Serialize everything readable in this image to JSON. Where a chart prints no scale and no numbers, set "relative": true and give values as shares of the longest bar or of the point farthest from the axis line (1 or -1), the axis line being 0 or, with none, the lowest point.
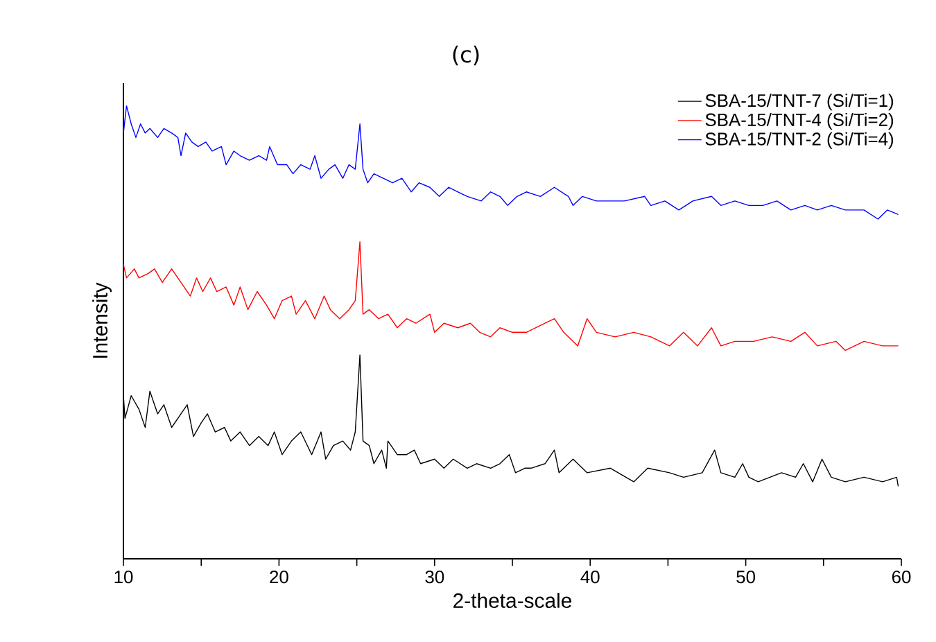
{
  "chart_data": {
    "type": "line",
    "relative": true,
    "xlabel": "2-theta-scale",
    "ylabel": "Intensity",
    "annotations": [
      "(c)"
    ],
    "xlim": [
      10,
      60
    ],
    "xticks": [
      10,
      {
        "value": 15,
        "label": null
      },
      20,
      {
        "value": 25,
        "label": null
      },
      30,
      {
        "value": 35,
        "label": null
      },
      40,
      {
        "value": 45,
        "label": null
      },
      50,
      {
        "value": 55,
        "label": null
      },
      60
    ],
    "legend": "top right",
    "marker": "none",
    "line_style": "solid",
    "series": [
      {
        "name": "SBA-15/TNT-7 (Si/Ti=1)",
        "color": "#000000",
        "x": [
          10.0,
          10.1,
          10.5,
          11.0,
          11.4,
          11.7,
          12.2,
          12.6,
          13.1,
          13.7,
          14.1,
          14.5,
          15.0,
          15.4,
          15.9,
          16.5,
          16.9,
          17.5,
          18.1,
          18.7,
          19.3,
          19.7,
          20.2,
          20.8,
          21.4,
          22.1,
          22.7,
          23.0,
          23.5,
          24.1,
          24.6,
          24.9,
          25.2,
          25.4,
          25.8,
          26.1,
          26.6,
          26.9,
          27.0,
          27.6,
          28.2,
          28.7,
          29.1,
          30.0,
          30.6,
          31.2,
          32.1,
          32.7,
          33.6,
          34.2,
          34.8,
          35.2,
          35.8,
          36.2,
          37.1,
          37.7,
          38.0,
          38.9,
          39.8,
          41.3,
          42.8,
          43.7,
          45.1,
          46.0,
          47.2,
          48.0,
          48.4,
          49.3,
          49.8,
          50.2,
          50.8,
          52.3,
          53.2,
          53.7,
          54.3,
          54.9,
          55.5,
          56.4,
          57.6,
          58.8,
          59.7,
          59.8
        ],
        "values": [
          0.36,
          0.31,
          0.36,
          0.33,
          0.29,
          0.37,
          0.32,
          0.34,
          0.29,
          0.32,
          0.34,
          0.27,
          0.3,
          0.32,
          0.28,
          0.29,
          0.26,
          0.28,
          0.25,
          0.27,
          0.25,
          0.28,
          0.23,
          0.26,
          0.28,
          0.23,
          0.28,
          0.22,
          0.25,
          0.26,
          0.24,
          0.28,
          0.45,
          0.26,
          0.25,
          0.21,
          0.24,
          0.2,
          0.26,
          0.23,
          0.23,
          0.24,
          0.21,
          0.22,
          0.2,
          0.22,
          0.2,
          0.21,
          0.2,
          0.21,
          0.23,
          0.19,
          0.2,
          0.2,
          0.21,
          0.24,
          0.19,
          0.22,
          0.19,
          0.2,
          0.17,
          0.2,
          0.19,
          0.18,
          0.19,
          0.24,
          0.19,
          0.18,
          0.21,
          0.18,
          0.17,
          0.19,
          0.18,
          0.21,
          0.17,
          0.22,
          0.18,
          0.17,
          0.18,
          0.17,
          0.18,
          0.16
        ]
      },
      {
        "name": "SBA-15/TNT-4 (Si/Ti=2)",
        "color": "#ff0000",
        "x": [
          10.0,
          10.2,
          10.7,
          11.0,
          11.6,
          12.0,
          12.5,
          13.1,
          13.7,
          14.3,
          14.7,
          15.1,
          15.6,
          16.0,
          16.6,
          17.1,
          17.5,
          18.0,
          18.6,
          19.2,
          19.7,
          20.2,
          20.8,
          21.1,
          21.7,
          22.3,
          22.9,
          23.3,
          23.9,
          24.5,
          24.9,
          25.2,
          25.4,
          25.8,
          26.4,
          27.0,
          27.6,
          28.2,
          28.8,
          29.7,
          30.0,
          30.6,
          31.5,
          32.3,
          32.9,
          33.6,
          34.2,
          35.0,
          35.8,
          35.9,
          37.1,
          37.7,
          38.3,
          39.2,
          39.8,
          40.4,
          41.6,
          42.8,
          43.9,
          45.1,
          46.0,
          46.9,
          47.8,
          48.4,
          49.3,
          50.5,
          51.7,
          52.9,
          53.8,
          54.6,
          55.8,
          56.4,
          57.6,
          58.8,
          59.8
        ],
        "values": [
          0.65,
          0.62,
          0.64,
          0.62,
          0.63,
          0.64,
          0.61,
          0.64,
          0.61,
          0.58,
          0.62,
          0.59,
          0.62,
          0.59,
          0.6,
          0.56,
          0.6,
          0.55,
          0.59,
          0.56,
          0.53,
          0.57,
          0.58,
          0.54,
          0.57,
          0.53,
          0.58,
          0.55,
          0.53,
          0.55,
          0.57,
          0.7,
          0.54,
          0.55,
          0.53,
          0.54,
          0.51,
          0.53,
          0.52,
          0.54,
          0.5,
          0.52,
          0.51,
          0.52,
          0.5,
          0.49,
          0.51,
          0.5,
          0.5,
          0.5,
          0.52,
          0.53,
          0.5,
          0.47,
          0.53,
          0.5,
          0.49,
          0.5,
          0.49,
          0.47,
          0.5,
          0.47,
          0.51,
          0.47,
          0.48,
          0.48,
          0.49,
          0.48,
          0.5,
          0.47,
          0.48,
          0.46,
          0.48,
          0.47,
          0.47
        ]
      },
      {
        "name": "SBA-15/TNT-2 (Si/Ti=4)",
        "color": "#0000ff",
        "x": [
          10.0,
          10.2,
          10.5,
          10.8,
          11.1,
          11.4,
          11.7,
          12.2,
          12.6,
          13.1,
          13.5,
          13.7,
          14.0,
          14.4,
          14.8,
          15.3,
          15.7,
          16.3,
          16.6,
          17.1,
          17.5,
          18.1,
          18.7,
          19.2,
          19.4,
          19.9,
          20.5,
          20.9,
          21.4,
          22.0,
          22.3,
          22.7,
          23.2,
          23.6,
          24.1,
          24.5,
          24.9,
          25.2,
          25.4,
          25.7,
          26.1,
          26.7,
          27.3,
          27.9,
          28.5,
          29.0,
          29.7,
          30.3,
          30.9,
          31.5,
          32.1,
          33.0,
          33.6,
          34.2,
          34.7,
          35.3,
          35.9,
          36.8,
          37.7,
          38.6,
          38.9,
          39.5,
          40.4,
          41.3,
          42.2,
          43.5,
          43.9,
          44.8,
          45.7,
          46.6,
          47.8,
          48.4,
          49.3,
          50.2,
          51.1,
          52.0,
          52.9,
          53.8,
          54.6,
          55.5,
          56.4,
          57.6,
          58.5,
          59.1,
          59.8
        ],
        "values": [
          0.94,
          1.0,
          0.96,
          0.93,
          0.96,
          0.94,
          0.95,
          0.93,
          0.95,
          0.94,
          0.93,
          0.89,
          0.94,
          0.92,
          0.91,
          0.92,
          0.9,
          0.91,
          0.87,
          0.9,
          0.89,
          0.88,
          0.89,
          0.88,
          0.91,
          0.87,
          0.87,
          0.85,
          0.87,
          0.86,
          0.89,
          0.84,
          0.86,
          0.87,
          0.84,
          0.87,
          0.86,
          0.96,
          0.86,
          0.83,
          0.85,
          0.84,
          0.83,
          0.84,
          0.81,
          0.83,
          0.82,
          0.8,
          0.82,
          0.81,
          0.8,
          0.79,
          0.81,
          0.8,
          0.78,
          0.8,
          0.81,
          0.8,
          0.82,
          0.8,
          0.78,
          0.8,
          0.79,
          0.79,
          0.79,
          0.8,
          0.78,
          0.79,
          0.77,
          0.79,
          0.8,
          0.78,
          0.79,
          0.78,
          0.78,
          0.79,
          0.77,
          0.78,
          0.77,
          0.78,
          0.77,
          0.77,
          0.75,
          0.77,
          0.76
        ]
      }
    ]
  }
}
